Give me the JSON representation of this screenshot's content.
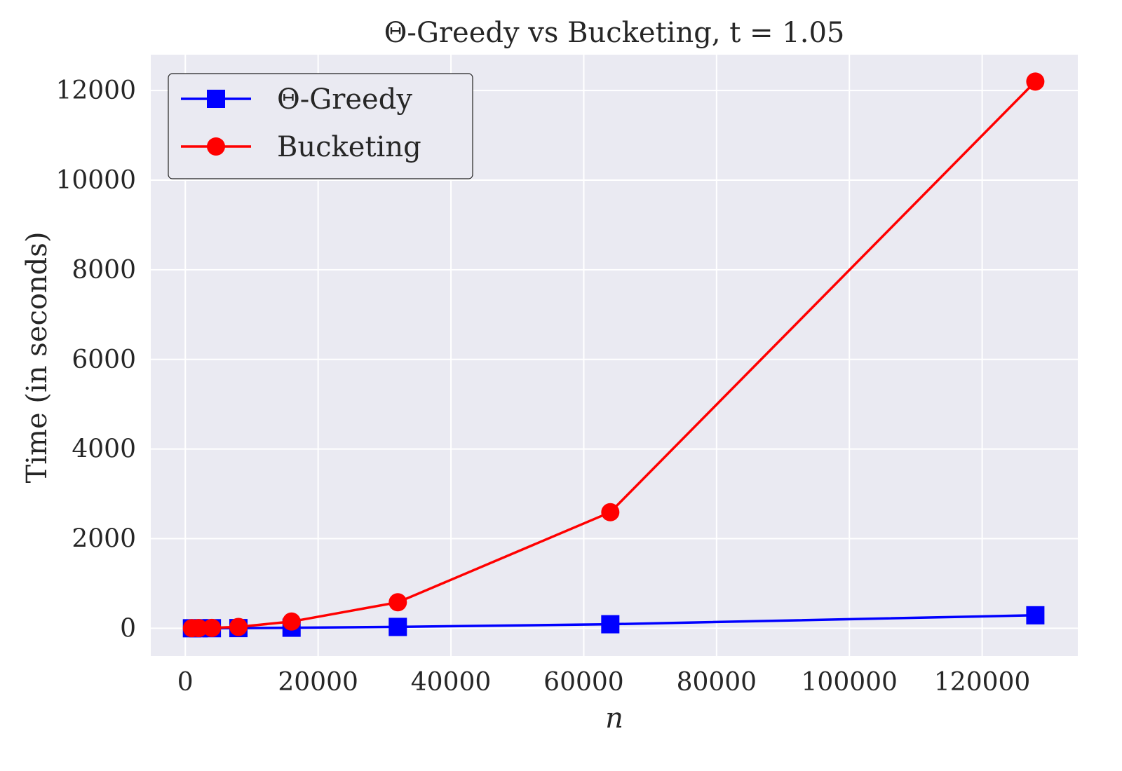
{
  "chart_data": {
    "type": "line",
    "title": "Θ-Greedy vs Bucketing, t = 1.05",
    "xlabel": "n",
    "ylabel": "Time (in seconds)",
    "xlim": [
      -5200,
      134400
    ],
    "ylim": [
      -620,
      12800
    ],
    "xticks": [
      0,
      20000,
      40000,
      60000,
      80000,
      100000,
      120000
    ],
    "yticks": [
      0,
      2000,
      4000,
      6000,
      8000,
      10000,
      12000
    ],
    "grid": true,
    "legend_position": "top-left",
    "x": [
      1000,
      2000,
      4000,
      8000,
      16000,
      32000,
      64000,
      128000
    ],
    "series": [
      {
        "name": "Θ-Greedy",
        "color": "#0000ff",
        "marker": "square",
        "values": [
          0.2,
          0.5,
          1.5,
          4,
          12,
          30,
          90,
          290
        ]
      },
      {
        "name": "Bucketing",
        "color": "#ff0000",
        "marker": "circle",
        "values": [
          1,
          3,
          8,
          30,
          150,
          580,
          2590,
          12200
        ]
      }
    ]
  }
}
